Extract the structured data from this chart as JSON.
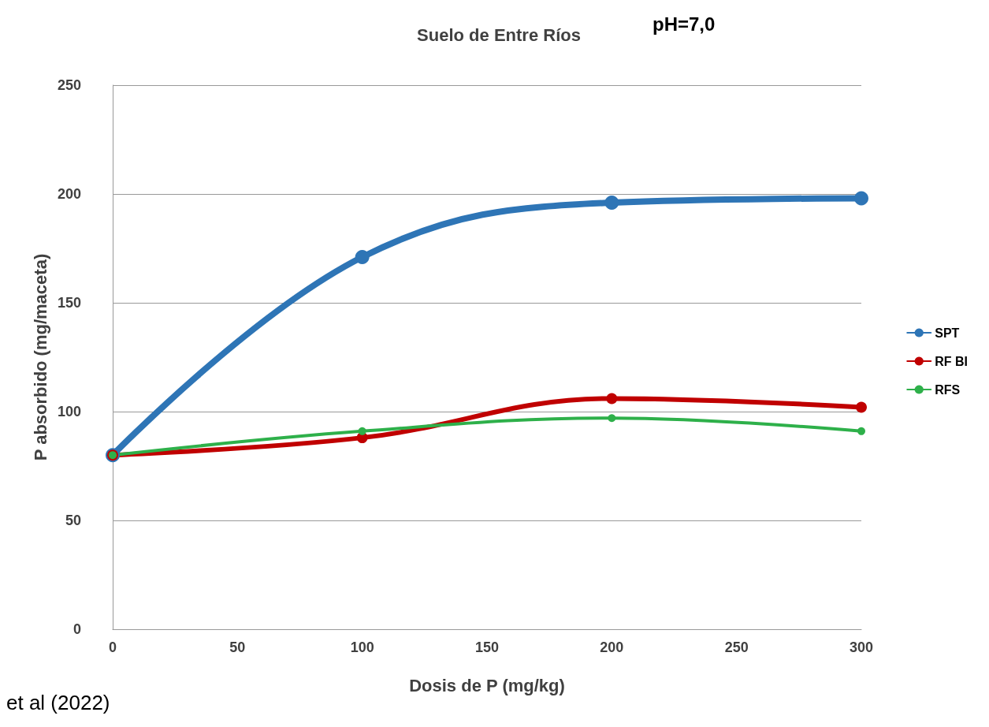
{
  "chart_data": {
    "type": "line",
    "title": "Suelo de Entre Ríos",
    "xlabel": "Dosis de P (mg/kg)",
    "ylabel": "P absorbido (mg/maceta)",
    "annotations": [
      "pH=7,0",
      "et al (2022)"
    ],
    "x": [
      0,
      100,
      200,
      300
    ],
    "series": [
      {
        "name": "SPT",
        "color": "#2e75b6",
        "values": [
          80,
          171,
          196,
          198
        ]
      },
      {
        "name": "RF BI",
        "color": "#c00000",
        "values": [
          80,
          88,
          106,
          102
        ]
      },
      {
        "name": "RFS",
        "color": "#2eb04a",
        "values": [
          80,
          91,
          97,
          91
        ]
      }
    ],
    "xlim": [
      0,
      300
    ],
    "xticks": [
      0,
      50,
      100,
      150,
      200,
      250,
      300
    ],
    "ylim": [
      0,
      250
    ],
    "yticks": [
      0,
      50,
      100,
      150,
      200,
      250
    ],
    "grid": "y",
    "legend": "right",
    "marker": "circle",
    "line_style": "solid"
  }
}
